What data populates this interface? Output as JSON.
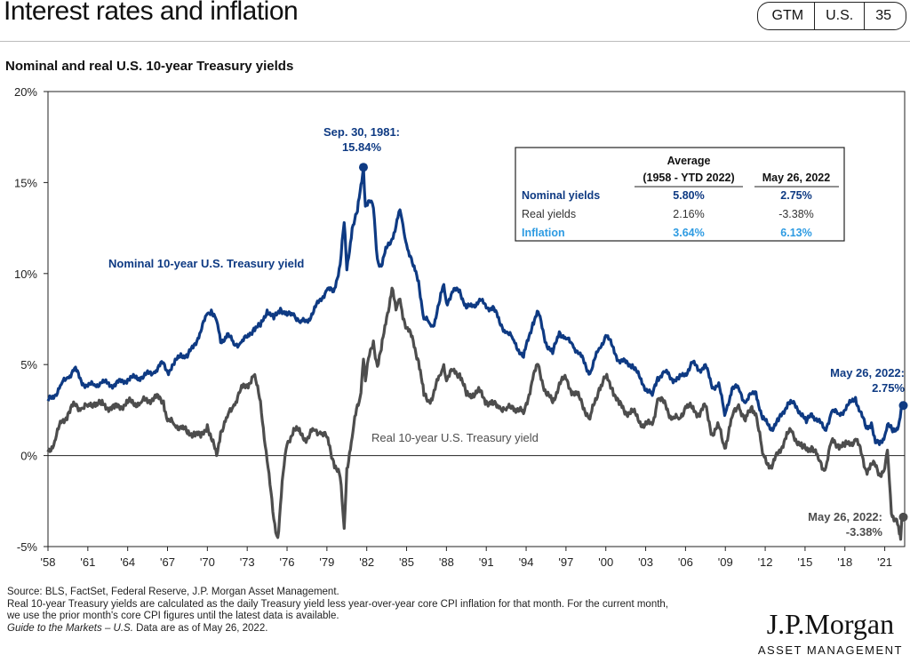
{
  "header": {
    "title": "Interest rates and inflation",
    "badges": [
      "GTM",
      "U.S.",
      "35"
    ]
  },
  "subtitle": "Nominal and real U.S. 10-year Treasury yields",
  "chart_data": {
    "type": "line",
    "ylim": [
      -5,
      20
    ],
    "yticks": [
      "20%",
      "15%",
      "10%",
      "5%",
      "0%",
      "-5%"
    ],
    "xlim": [
      1958,
      2022.5
    ],
    "xticks": [
      "'58",
      "'61",
      "'64",
      "'67",
      "'70",
      "'73",
      "'76",
      "'79",
      "'82",
      "'85",
      "'88",
      "'91",
      "'94",
      "'97",
      "'00",
      "'03",
      "'06",
      "'09",
      "'12",
      "'15",
      "'18",
      "'21"
    ],
    "grid": false,
    "colors": {
      "nominal": "#0e3a83",
      "real": "#4d4d4d",
      "inflation": "#2e9be2"
    },
    "series": [
      {
        "name": "Nominal 10-year U.S. Treasury yield",
        "points": [
          [
            1958.0,
            3.0
          ],
          [
            1958.5,
            3.3
          ],
          [
            1959.0,
            3.9
          ],
          [
            1959.5,
            4.3
          ],
          [
            1960.0,
            4.8
          ],
          [
            1960.5,
            4.1
          ],
          [
            1961.0,
            3.8
          ],
          [
            1961.5,
            3.9
          ],
          [
            1962.0,
            4.0
          ],
          [
            1963.0,
            3.9
          ],
          [
            1964.0,
            4.2
          ],
          [
            1965.0,
            4.3
          ],
          [
            1966.0,
            4.6
          ],
          [
            1966.7,
            5.1
          ],
          [
            1967.0,
            4.6
          ],
          [
            1967.5,
            5.0
          ],
          [
            1968.0,
            5.6
          ],
          [
            1968.5,
            5.4
          ],
          [
            1969.0,
            6.1
          ],
          [
            1969.5,
            6.8
          ],
          [
            1970.0,
            7.8
          ],
          [
            1970.3,
            8.0
          ],
          [
            1970.7,
            7.4
          ],
          [
            1971.0,
            6.2
          ],
          [
            1971.5,
            6.7
          ],
          [
            1972.0,
            6.1
          ],
          [
            1972.5,
            6.2
          ],
          [
            1973.0,
            6.5
          ],
          [
            1973.5,
            7.0
          ],
          [
            1974.0,
            7.1
          ],
          [
            1974.5,
            8.0
          ],
          [
            1975.0,
            7.5
          ],
          [
            1975.5,
            8.1
          ],
          [
            1976.0,
            7.7
          ],
          [
            1976.5,
            7.8
          ],
          [
            1977.0,
            7.3
          ],
          [
            1977.5,
            7.4
          ],
          [
            1978.0,
            7.9
          ],
          [
            1978.5,
            8.6
          ],
          [
            1979.0,
            9.1
          ],
          [
            1979.5,
            9.0
          ],
          [
            1980.0,
            10.5
          ],
          [
            1980.3,
            12.8
          ],
          [
            1980.5,
            10.2
          ],
          [
            1980.9,
            12.5
          ],
          [
            1981.3,
            13.4
          ],
          [
            1981.5,
            14.5
          ],
          [
            1981.75,
            15.84
          ],
          [
            1981.9,
            13.7
          ],
          [
            1982.2,
            14.0
          ],
          [
            1982.5,
            13.6
          ],
          [
            1982.8,
            10.8
          ],
          [
            1983.1,
            10.4
          ],
          [
            1983.5,
            11.4
          ],
          [
            1983.9,
            11.9
          ],
          [
            1984.2,
            12.6
          ],
          [
            1984.5,
            13.5
          ],
          [
            1984.8,
            12.3
          ],
          [
            1985.0,
            11.6
          ],
          [
            1985.5,
            10.4
          ],
          [
            1985.9,
            9.6
          ],
          [
            1986.3,
            7.5
          ],
          [
            1986.7,
            7.3
          ],
          [
            1987.0,
            7.1
          ],
          [
            1987.5,
            8.5
          ],
          [
            1987.8,
            9.4
          ],
          [
            1988.0,
            8.4
          ],
          [
            1988.5,
            9.0
          ],
          [
            1989.0,
            9.1
          ],
          [
            1989.5,
            8.1
          ],
          [
            1990.0,
            8.2
          ],
          [
            1990.5,
            8.6
          ],
          [
            1991.0,
            8.1
          ],
          [
            1991.5,
            8.2
          ],
          [
            1992.0,
            7.3
          ],
          [
            1992.5,
            6.8
          ],
          [
            1993.0,
            6.4
          ],
          [
            1993.8,
            5.4
          ],
          [
            1994.5,
            7.3
          ],
          [
            1994.9,
            7.9
          ],
          [
            1995.5,
            6.2
          ],
          [
            1996.0,
            5.6
          ],
          [
            1996.5,
            6.8
          ],
          [
            1997.0,
            6.4
          ],
          [
            1997.5,
            6.1
          ],
          [
            1998.0,
            5.6
          ],
          [
            1998.8,
            4.5
          ],
          [
            1999.5,
            5.9
          ],
          [
            2000.0,
            6.6
          ],
          [
            2000.5,
            6.0
          ],
          [
            2001.0,
            5.2
          ],
          [
            2001.5,
            5.1
          ],
          [
            2002.0,
            5.0
          ],
          [
            2002.8,
            3.9
          ],
          [
            2003.5,
            3.3
          ],
          [
            2003.9,
            4.3
          ],
          [
            2004.5,
            4.6
          ],
          [
            2005.0,
            4.2
          ],
          [
            2005.5,
            4.2
          ],
          [
            2006.0,
            4.5
          ],
          [
            2006.5,
            5.1
          ],
          [
            2007.0,
            4.7
          ],
          [
            2007.5,
            5.0
          ],
          [
            2008.0,
            3.7
          ],
          [
            2008.5,
            4.0
          ],
          [
            2008.95,
            2.2
          ],
          [
            2009.5,
            3.7
          ],
          [
            2010.0,
            3.7
          ],
          [
            2010.5,
            2.9
          ],
          [
            2011.0,
            3.4
          ],
          [
            2011.3,
            3.5
          ],
          [
            2011.8,
            2.0
          ],
          [
            2012.5,
            1.5
          ],
          [
            2013.0,
            1.9
          ],
          [
            2013.7,
            2.9
          ],
          [
            2014.0,
            2.9
          ],
          [
            2014.8,
            2.3
          ],
          [
            2015.1,
            1.8
          ],
          [
            2015.5,
            2.3
          ],
          [
            2016.0,
            1.9
          ],
          [
            2016.5,
            1.4
          ],
          [
            2017.0,
            2.4
          ],
          [
            2017.5,
            2.3
          ],
          [
            2018.0,
            2.5
          ],
          [
            2018.8,
            3.2
          ],
          [
            2019.0,
            2.7
          ],
          [
            2019.6,
            1.5
          ],
          [
            2020.0,
            1.8
          ],
          [
            2020.3,
            0.7
          ],
          [
            2020.6,
            0.6
          ],
          [
            2021.0,
            1.1
          ],
          [
            2021.2,
            1.7
          ],
          [
            2021.6,
            1.3
          ],
          [
            2021.9,
            1.5
          ],
          [
            2022.1,
            1.9
          ],
          [
            2022.3,
            2.9
          ],
          [
            2022.4,
            2.75
          ]
        ]
      },
      {
        "name": "Real 10-year U.S. Treasury yield",
        "points": [
          [
            1958.0,
            0.2
          ],
          [
            1958.5,
            0.8
          ],
          [
            1959.0,
            1.8
          ],
          [
            1959.5,
            2.3
          ],
          [
            1960.0,
            2.8
          ],
          [
            1960.5,
            2.6
          ],
          [
            1961.0,
            2.7
          ],
          [
            1961.5,
            2.9
          ],
          [
            1962.0,
            2.8
          ],
          [
            1963.0,
            2.6
          ],
          [
            1964.0,
            2.9
          ],
          [
            1965.0,
            2.9
          ],
          [
            1966.0,
            3.2
          ],
          [
            1966.7,
            3.0
          ],
          [
            1967.0,
            1.9
          ],
          [
            1967.5,
            1.7
          ],
          [
            1968.0,
            1.6
          ],
          [
            1968.5,
            1.2
          ],
          [
            1969.0,
            1.3
          ],
          [
            1969.5,
            1.0
          ],
          [
            1970.0,
            1.7
          ],
          [
            1970.3,
            0.9
          ],
          [
            1970.7,
            0.0
          ],
          [
            1971.0,
            1.3
          ],
          [
            1971.5,
            2.1
          ],
          [
            1972.0,
            2.8
          ],
          [
            1972.5,
            3.6
          ],
          [
            1973.0,
            3.9
          ],
          [
            1973.5,
            4.4
          ],
          [
            1974.0,
            3.0
          ],
          [
            1974.5,
            -0.3
          ],
          [
            1975.0,
            -3.5
          ],
          [
            1975.3,
            -4.5
          ],
          [
            1975.7,
            -1.0
          ],
          [
            1976.0,
            0.6
          ],
          [
            1976.5,
            1.5
          ],
          [
            1977.0,
            1.2
          ],
          [
            1977.5,
            0.9
          ],
          [
            1978.0,
            1.4
          ],
          [
            1978.5,
            1.3
          ],
          [
            1979.0,
            1.0
          ],
          [
            1979.5,
            -0.3
          ],
          [
            1980.0,
            -1.2
          ],
          [
            1980.3,
            -4.0
          ],
          [
            1980.5,
            -0.7
          ],
          [
            1980.9,
            1.0
          ],
          [
            1981.3,
            2.8
          ],
          [
            1981.5,
            3.2
          ],
          [
            1981.75,
            5.3
          ],
          [
            1981.9,
            4.1
          ],
          [
            1982.2,
            5.5
          ],
          [
            1982.5,
            6.3
          ],
          [
            1982.8,
            4.9
          ],
          [
            1983.1,
            5.8
          ],
          [
            1983.5,
            7.6
          ],
          [
            1983.9,
            9.2
          ],
          [
            1984.2,
            8.0
          ],
          [
            1984.5,
            8.6
          ],
          [
            1984.8,
            7.5
          ],
          [
            1985.0,
            7.0
          ],
          [
            1985.5,
            6.3
          ],
          [
            1985.9,
            5.2
          ],
          [
            1986.3,
            3.3
          ],
          [
            1986.7,
            3.0
          ],
          [
            1987.0,
            3.3
          ],
          [
            1987.5,
            4.4
          ],
          [
            1987.8,
            5.0
          ],
          [
            1988.0,
            4.1
          ],
          [
            1988.5,
            4.7
          ],
          [
            1989.0,
            4.5
          ],
          [
            1989.5,
            3.3
          ],
          [
            1990.0,
            3.4
          ],
          [
            1990.5,
            3.5
          ],
          [
            1991.0,
            3.0
          ],
          [
            1991.5,
            2.8
          ],
          [
            1992.0,
            2.7
          ],
          [
            1992.5,
            2.5
          ],
          [
            1993.0,
            2.7
          ],
          [
            1993.8,
            2.3
          ],
          [
            1994.5,
            4.2
          ],
          [
            1994.9,
            5.0
          ],
          [
            1995.5,
            3.4
          ],
          [
            1996.0,
            2.9
          ],
          [
            1996.5,
            4.0
          ],
          [
            1997.0,
            4.2
          ],
          [
            1997.5,
            3.5
          ],
          [
            1998.0,
            3.2
          ],
          [
            1998.8,
            2.0
          ],
          [
            1999.5,
            3.7
          ],
          [
            2000.0,
            4.3
          ],
          [
            2000.5,
            3.7
          ],
          [
            2001.0,
            2.8
          ],
          [
            2001.5,
            2.4
          ],
          [
            2002.0,
            2.4
          ],
          [
            2002.8,
            1.7
          ],
          [
            2003.5,
            1.7
          ],
          [
            2003.9,
            3.1
          ],
          [
            2004.5,
            2.8
          ],
          [
            2005.0,
            2.0
          ],
          [
            2005.5,
            2.0
          ],
          [
            2006.0,
            2.7
          ],
          [
            2006.5,
            2.6
          ],
          [
            2007.0,
            2.3
          ],
          [
            2007.5,
            2.7
          ],
          [
            2008.0,
            1.2
          ],
          [
            2008.5,
            1.6
          ],
          [
            2008.95,
            0.4
          ],
          [
            2009.5,
            2.1
          ],
          [
            2010.0,
            2.8
          ],
          [
            2010.5,
            1.9
          ],
          [
            2011.0,
            2.7
          ],
          [
            2011.3,
            2.3
          ],
          [
            2011.8,
            0.1
          ],
          [
            2012.5,
            -0.7
          ],
          [
            2013.0,
            0.2
          ],
          [
            2013.7,
            1.2
          ],
          [
            2014.0,
            1.3
          ],
          [
            2014.8,
            0.4
          ],
          [
            2015.1,
            0.3
          ],
          [
            2015.5,
            0.5
          ],
          [
            2016.0,
            -0.2
          ],
          [
            2016.5,
            -0.8
          ],
          [
            2017.0,
            0.8
          ],
          [
            2017.5,
            0.6
          ],
          [
            2018.0,
            0.5
          ],
          [
            2018.8,
            0.9
          ],
          [
            2019.0,
            0.6
          ],
          [
            2019.6,
            -0.8
          ],
          [
            2020.0,
            -0.5
          ],
          [
            2020.3,
            -0.6
          ],
          [
            2020.6,
            -1.0
          ],
          [
            2021.0,
            -0.7
          ],
          [
            2021.2,
            0.3
          ],
          [
            2021.5,
            -3.2
          ],
          [
            2021.9,
            -3.5
          ],
          [
            2022.1,
            -4.3
          ],
          [
            2022.2,
            -4.6
          ],
          [
            2022.3,
            -3.3
          ],
          [
            2022.4,
            -3.38
          ]
        ]
      }
    ],
    "annotations": {
      "peak_title": "Sep. 30, 1981:",
      "peak_value": "15.84%",
      "nominal_series_label": "Nominal 10-year U.S. Treasury yield",
      "real_series_label": "Real 10-year U.S. Treasury yield",
      "nominal_end_title": "May 26, 2022:",
      "nominal_end_value": "2.75%",
      "real_end_title": "May 26, 2022:",
      "real_end_value": "-3.38%"
    },
    "table": {
      "header_average": "Average",
      "header_period": "(1958 - YTD 2022)",
      "header_date": "May 26, 2022",
      "rows": [
        {
          "label": "Nominal yields",
          "average": "5.80%",
          "current": "2.75%"
        },
        {
          "label": "Real yields",
          "average": "2.16%",
          "current": "-3.38%"
        },
        {
          "label": "Inflation",
          "average": "3.64%",
          "current": "6.13%"
        }
      ]
    }
  },
  "footnotes": {
    "source": "Source: BLS, FactSet, Federal Reserve, J.P. Morgan Asset Management.",
    "note_line1": "Real 10-year Treasury yields are calculated as the daily Treasury yield less year-over-year core CPI inflation for that month. For the current month,",
    "note_line2": "we use the prior month's core CPI figures until the latest data is available.",
    "guide_italic": "Guide to the Markets – U.S.",
    "guide_rest": " Data are as of May 26, 2022."
  },
  "logo": {
    "name": "J.P.Morgan",
    "subtitle": "ASSET MANAGEMENT"
  }
}
